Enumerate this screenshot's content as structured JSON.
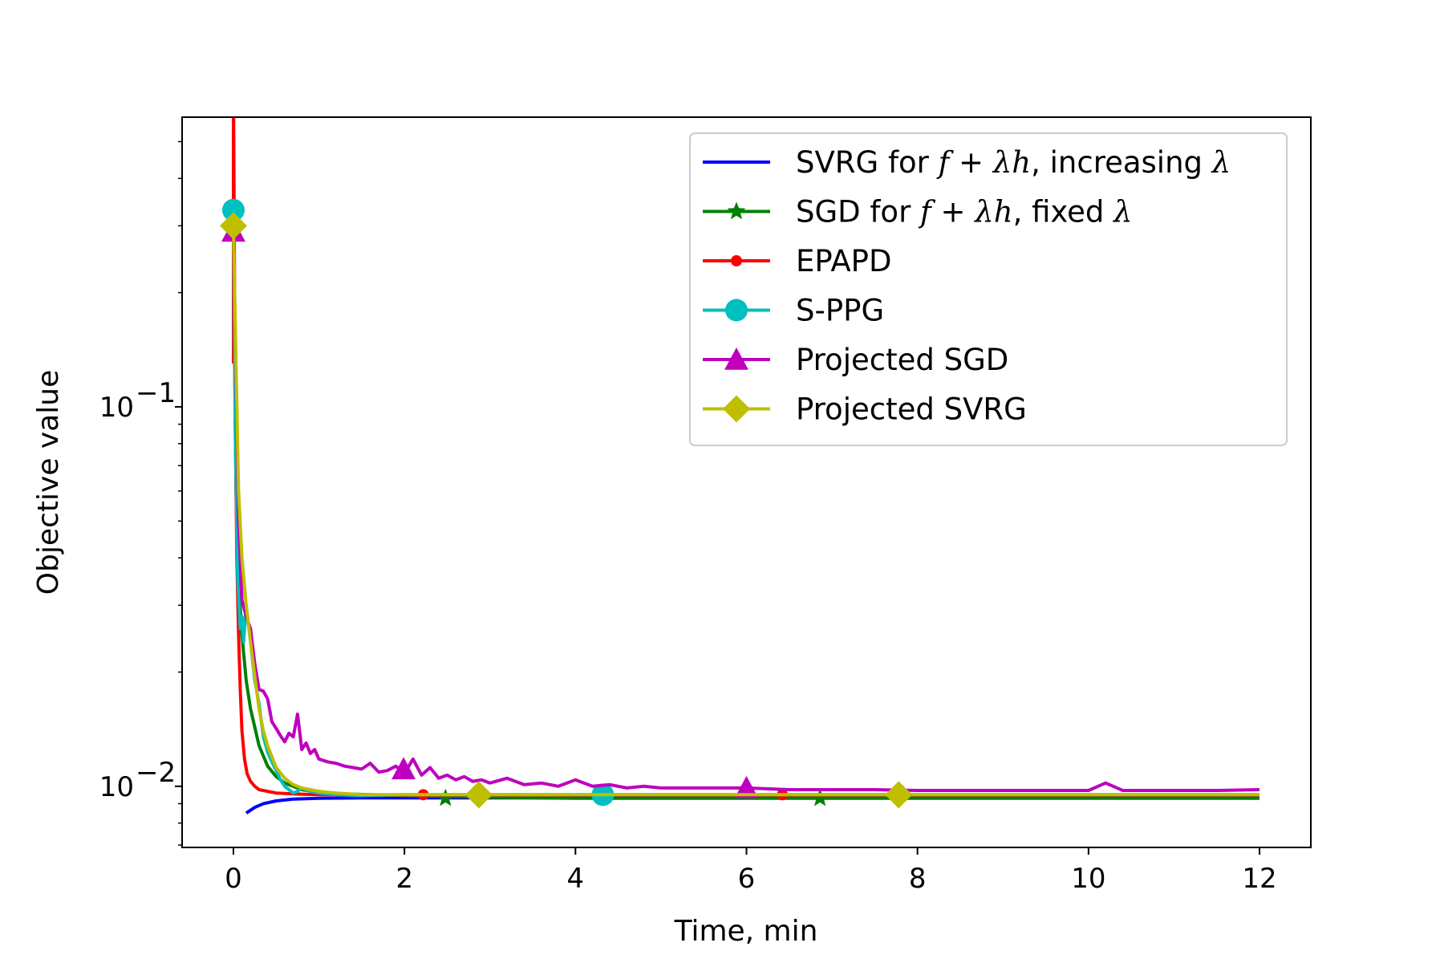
{
  "chart_data": {
    "type": "line",
    "xlabel": "Time, min",
    "ylabel": "Objective value",
    "yscale": "log",
    "xlim": [
      -0.6,
      12.6
    ],
    "ylim": [
      0.0069,
      0.58
    ],
    "xticks": [
      0,
      2,
      4,
      6,
      8,
      10,
      12
    ],
    "yticks": [
      {
        "value": 0.1,
        "label": "10",
        "exponent": "−1"
      },
      {
        "value": 0.01,
        "label": "10",
        "exponent": "−2"
      }
    ],
    "grid": false,
    "legend_position": "top-right",
    "series": [
      {
        "name_parts": [
          "SVRG for ",
          "f",
          " + ",
          "λh",
          ", increasing ",
          "λ"
        ],
        "color": "#0000ff",
        "marker": "none",
        "x": [
          0.15,
          0.25,
          0.35,
          0.5,
          0.7,
          1.0,
          1.5,
          2.0,
          3.0,
          4.0,
          6.0,
          8.0,
          10.0,
          12.0
        ],
        "y": [
          0.0085,
          0.0088,
          0.009,
          0.00915,
          0.00925,
          0.0093,
          0.00932,
          0.00932,
          0.00932,
          0.00932,
          0.00932,
          0.00932,
          0.00932,
          0.00932
        ]
      },
      {
        "name_parts": [
          "SGD for ",
          "f",
          " + ",
          "λh",
          ", fixed ",
          "λ"
        ],
        "color": "#008000",
        "marker": "star",
        "x": [
          0.0,
          0.03,
          0.06,
          0.1,
          0.15,
          0.2,
          0.3,
          0.4,
          0.5,
          0.6,
          0.8,
          1.0,
          1.3,
          1.6,
          2.0,
          2.5,
          3.0,
          4.0,
          6.0,
          8.0,
          10.0,
          12.0
        ],
        "y": [
          0.28,
          0.06,
          0.035,
          0.025,
          0.019,
          0.016,
          0.0128,
          0.0113,
          0.0106,
          0.0102,
          0.0098,
          0.00965,
          0.00955,
          0.0095,
          0.00945,
          0.0094,
          0.00935,
          0.0093,
          0.0093,
          0.0093,
          0.0093,
          0.0093
        ],
        "marker_x": [
          2.48,
          6.86
        ],
        "marker_y": [
          0.0093,
          0.0093
        ]
      },
      {
        "name_parts": [
          "EPAPD"
        ],
        "color": "#ff0000",
        "marker": "dot",
        "x": [
          0.0,
          0.0,
          0.02,
          0.04,
          0.06,
          0.08,
          0.1,
          0.13,
          0.16,
          0.2,
          0.25,
          0.3,
          0.4,
          0.5,
          0.7,
          1.0,
          2.0,
          4.0,
          6.0,
          8.0,
          10.0,
          12.0
        ],
        "y": [
          0.13,
          0.75,
          0.1,
          0.04,
          0.025,
          0.018,
          0.014,
          0.0118,
          0.0108,
          0.0103,
          0.01,
          0.0098,
          0.0097,
          0.0096,
          0.00955,
          0.0095,
          0.00948,
          0.00948,
          0.00948,
          0.00948,
          0.00948,
          0.00948
        ],
        "marker_x": [
          0.0,
          2.22,
          6.42
        ],
        "marker_y": [
          0.75,
          0.0095,
          0.0095
        ]
      },
      {
        "name_parts": [
          "S-PPG"
        ],
        "color": "#00bfbf",
        "marker": "circle",
        "x": [
          0.0,
          0.02,
          0.05,
          0.08,
          0.1,
          0.12,
          0.15,
          0.2,
          0.25,
          0.3,
          0.35,
          0.4,
          0.45,
          0.5,
          0.55,
          0.6,
          0.65,
          0.7,
          0.75,
          0.8,
          0.9,
          1.0,
          1.2,
          1.45,
          2.0,
          4.0,
          6.0,
          8.0,
          10.0,
          12.0
        ],
        "y": [
          0.33,
          0.09,
          0.035,
          0.026,
          0.028,
          0.024,
          0.03,
          0.024,
          0.019,
          0.0165,
          0.0135,
          0.0123,
          0.0116,
          0.011,
          0.0104,
          0.01,
          0.0098,
          0.0096,
          0.0097,
          0.0099,
          0.0097,
          0.0096,
          0.0095,
          0.00945,
          0.0095,
          0.0095,
          0.0095,
          0.0095,
          0.0095,
          0.0095
        ],
        "marker_x": [
          0.0,
          4.32
        ],
        "marker_y": [
          0.33,
          0.0095
        ]
      },
      {
        "name_parts": [
          "Projected SGD"
        ],
        "color": "#bf00bf",
        "marker": "triangle",
        "x": [
          0.0,
          0.03,
          0.06,
          0.1,
          0.15,
          0.2,
          0.25,
          0.3,
          0.35,
          0.4,
          0.45,
          0.5,
          0.55,
          0.6,
          0.65,
          0.7,
          0.75,
          0.8,
          0.85,
          0.9,
          0.95,
          1.0,
          1.1,
          1.2,
          1.3,
          1.4,
          1.5,
          1.6,
          1.7,
          1.8,
          1.9,
          2.0,
          2.1,
          2.2,
          2.3,
          2.4,
          2.5,
          2.6,
          2.7,
          2.8,
          2.9,
          3.0,
          3.2,
          3.4,
          3.6,
          3.8,
          4.0,
          4.2,
          4.4,
          4.6,
          4.8,
          5.0,
          5.5,
          6.0,
          6.5,
          7.0,
          7.5,
          8.0,
          8.5,
          9.0,
          9.5,
          10.0,
          10.2,
          10.4,
          11.0,
          11.5,
          12.0
        ],
        "y": [
          0.29,
          0.12,
          0.05,
          0.031,
          0.028,
          0.026,
          0.021,
          0.018,
          0.0178,
          0.017,
          0.0148,
          0.0142,
          0.0136,
          0.0131,
          0.0138,
          0.0135,
          0.0155,
          0.0125,
          0.013,
          0.0122,
          0.0125,
          0.0118,
          0.0116,
          0.0115,
          0.0113,
          0.0112,
          0.0111,
          0.0115,
          0.0109,
          0.011,
          0.0113,
          0.0108,
          0.0118,
          0.0107,
          0.0112,
          0.0105,
          0.0107,
          0.0104,
          0.0106,
          0.0103,
          0.0104,
          0.0102,
          0.0105,
          0.0101,
          0.0102,
          0.01,
          0.0104,
          0.01,
          0.0101,
          0.0099,
          0.01,
          0.0099,
          0.0099,
          0.0099,
          0.0098,
          0.0098,
          0.0098,
          0.00975,
          0.00975,
          0.00975,
          0.00975,
          0.00975,
          0.0102,
          0.00975,
          0.00975,
          0.00975,
          0.0098
        ],
        "marker_x": [
          0.0,
          1.99,
          6.0
        ],
        "marker_y": [
          0.29,
          0.0111,
          0.0099
        ]
      },
      {
        "name_parts": [
          "Projected SVRG"
        ],
        "color": "#bfbf00",
        "marker": "diamond",
        "x": [
          0.0,
          0.03,
          0.06,
          0.1,
          0.15,
          0.2,
          0.25,
          0.3,
          0.35,
          0.4,
          0.5,
          0.6,
          0.7,
          0.8,
          1.0,
          1.2,
          1.5,
          2.0,
          2.87,
          4.0,
          6.0,
          7.78,
          10.0,
          12.0
        ],
        "y": [
          0.3,
          0.13,
          0.06,
          0.04,
          0.03,
          0.024,
          0.0195,
          0.016,
          0.014,
          0.0128,
          0.0112,
          0.0105,
          0.0101,
          0.0099,
          0.0097,
          0.0096,
          0.0095,
          0.0095,
          0.0095,
          0.0095,
          0.0095,
          0.0095,
          0.0095,
          0.0095
        ],
        "marker_x": [
          0.0,
          2.87,
          7.78
        ],
        "marker_y": [
          0.3,
          0.0095,
          0.0095
        ]
      }
    ]
  }
}
